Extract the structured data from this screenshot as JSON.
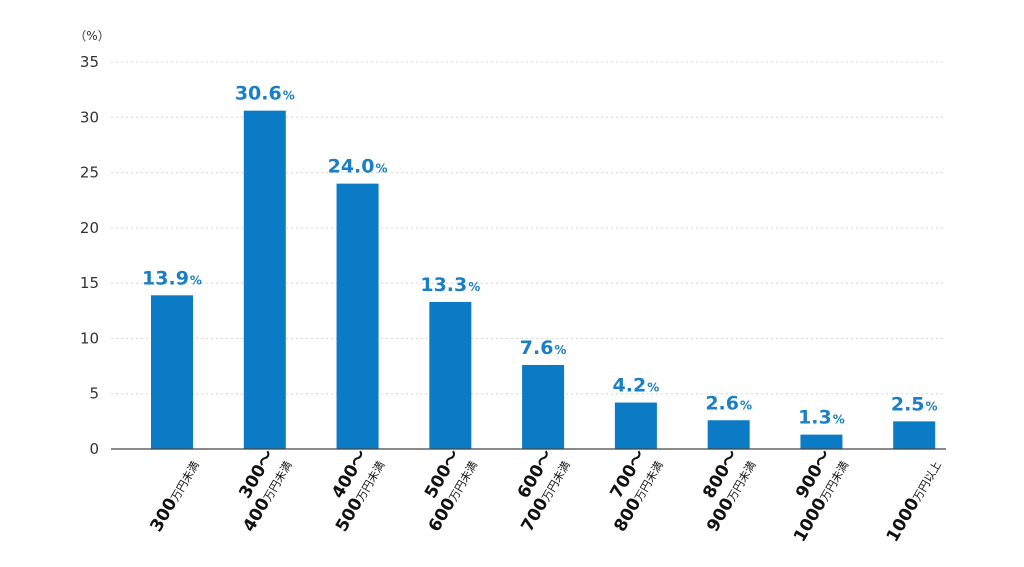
{
  "chart_data": {
    "type": "bar",
    "unit_label": "（%）",
    "value_suffix": "%",
    "categories": [
      {
        "lines": [
          {
            "main": "300",
            "suffix": "万円未満"
          }
        ]
      },
      {
        "lines": [
          {
            "main": "300～",
            "suffix": ""
          },
          {
            "main": "400",
            "suffix": "万円未満"
          }
        ]
      },
      {
        "lines": [
          {
            "main": "400～",
            "suffix": ""
          },
          {
            "main": "500",
            "suffix": "万円未満"
          }
        ]
      },
      {
        "lines": [
          {
            "main": "500～",
            "suffix": ""
          },
          {
            "main": "600",
            "suffix": "万円未満"
          }
        ]
      },
      {
        "lines": [
          {
            "main": "600～",
            "suffix": ""
          },
          {
            "main": "700",
            "suffix": "万円未満"
          }
        ]
      },
      {
        "lines": [
          {
            "main": "700～",
            "suffix": ""
          },
          {
            "main": "800",
            "suffix": "万円未満"
          }
        ]
      },
      {
        "lines": [
          {
            "main": "800～",
            "suffix": ""
          },
          {
            "main": "900",
            "suffix": "万円未満"
          }
        ]
      },
      {
        "lines": [
          {
            "main": "900～",
            "suffix": ""
          },
          {
            "main": "1000",
            "suffix": "万円未満"
          }
        ]
      },
      {
        "lines": [
          {
            "main": "1000",
            "suffix": "万円以上"
          }
        ]
      }
    ],
    "values": [
      13.9,
      30.6,
      24.0,
      13.3,
      7.6,
      4.2,
      2.6,
      1.3,
      2.5
    ],
    "value_labels": [
      "13.9",
      "30.6",
      "24.0",
      "13.3",
      "7.6",
      "4.2",
      "2.6",
      "1.3",
      "2.5"
    ],
    "yticks": [
      "0",
      "5",
      "10",
      "15",
      "20",
      "25",
      "30",
      "35"
    ],
    "ylim": [
      0,
      35
    ],
    "grid": true,
    "legend": "none",
    "colors": {
      "bar": "#0a7bc4",
      "label": "#1a7fc4",
      "grid": "#d6d6d6",
      "axis": "#444444"
    }
  }
}
